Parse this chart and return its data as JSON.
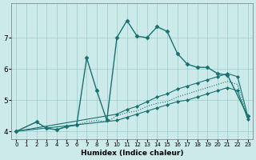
{
  "xlabel": "Humidex (Indice chaleur)",
  "background_color": "#cceaea",
  "grid_color": "#99cccc",
  "line_color": "#1a7070",
  "xlim": [
    -0.5,
    23.5
  ],
  "ylim": [
    3.75,
    8.1
  ],
  "yticks": [
    4,
    5,
    6,
    7
  ],
  "xticks": [
    0,
    1,
    2,
    3,
    4,
    5,
    6,
    7,
    8,
    9,
    10,
    11,
    12,
    13,
    14,
    15,
    16,
    17,
    18,
    19,
    20,
    21,
    22,
    23
  ],
  "lines": [
    {
      "x": [
        0,
        2,
        3,
        4,
        5,
        6,
        7,
        8,
        9,
        10,
        11,
        12,
        13,
        14,
        15,
        16,
        17,
        18,
        19,
        20,
        21,
        23
      ],
      "y": [
        4.0,
        4.3,
        4.1,
        4.05,
        4.15,
        4.2,
        6.35,
        5.3,
        4.35,
        7.0,
        7.55,
        7.05,
        7.0,
        7.35,
        7.2,
        6.5,
        6.15,
        6.05,
        6.05,
        5.85,
        5.8,
        4.5
      ],
      "style": "-",
      "marker": "D",
      "markersize": 2.5,
      "linewidth": 1.0
    },
    {
      "x": [
        0,
        10,
        11,
        12,
        13,
        14,
        15,
        16,
        17,
        18,
        19,
        20,
        21,
        22,
        23
      ],
      "y": [
        4.0,
        4.55,
        4.7,
        4.8,
        4.95,
        5.1,
        5.2,
        5.35,
        5.45,
        5.55,
        5.65,
        5.75,
        5.85,
        5.75,
        4.5
      ],
      "style": "-",
      "marker": "D",
      "markersize": 2.0,
      "linewidth": 0.8
    },
    {
      "x": [
        0,
        10,
        11,
        12,
        13,
        14,
        15,
        16,
        17,
        18,
        19,
        20,
        21,
        22,
        23
      ],
      "y": [
        4.0,
        4.35,
        4.45,
        4.55,
        4.65,
        4.75,
        4.85,
        4.95,
        5.0,
        5.1,
        5.2,
        5.3,
        5.4,
        5.3,
        4.4
      ],
      "style": "-",
      "marker": "D",
      "markersize": 2.0,
      "linewidth": 0.8
    },
    {
      "x": [
        0,
        2,
        3,
        4,
        5,
        6,
        7,
        8,
        9,
        10,
        11,
        12,
        13,
        14,
        15,
        16,
        17,
        18,
        19,
        20,
        21,
        22,
        23
      ],
      "y": [
        4.0,
        4.3,
        4.1,
        4.05,
        4.15,
        4.2,
        4.3,
        4.35,
        4.3,
        4.5,
        4.6,
        4.65,
        4.8,
        4.9,
        4.95,
        5.1,
        5.2,
        5.3,
        5.4,
        5.5,
        5.6,
        5.5,
        4.45
      ],
      "style": ":",
      "marker": null,
      "markersize": 0,
      "linewidth": 0.8
    }
  ]
}
